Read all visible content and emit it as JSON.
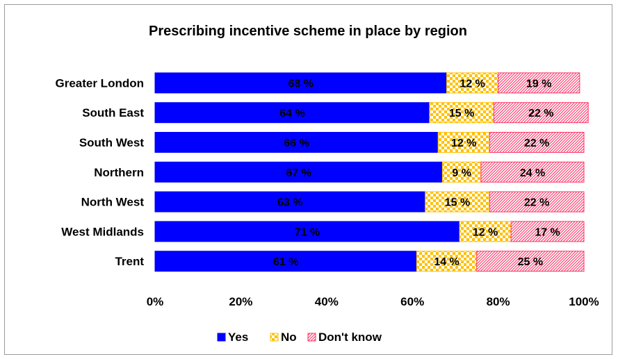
{
  "chart_data": {
    "type": "bar",
    "orientation": "horizontal",
    "stacked": true,
    "percent_stacked": true,
    "title": "Prescribing incentive scheme in place by region",
    "xlabel": "",
    "ylabel": "",
    "xlim": [
      0,
      100
    ],
    "x_ticks": [
      "0%",
      "20%",
      "40%",
      "60%",
      "80%",
      "100%"
    ],
    "grid": false,
    "legend_position": "bottom",
    "categories": [
      "Greater London",
      "South East",
      "South West",
      "Northern",
      "North West",
      "West Midlands",
      "Trent"
    ],
    "series": [
      {
        "name": "Yes",
        "color": "#0000ff",
        "pattern": "solid",
        "values": [
          68,
          64,
          66,
          67,
          63,
          71,
          61
        ],
        "labels": [
          "68 %",
          "64 %",
          "66 %",
          "67 %",
          "63 %",
          "71 %",
          "61 %"
        ]
      },
      {
        "name": "No",
        "color": "#ffc000",
        "pattern": "checker",
        "values": [
          12,
          15,
          12,
          9,
          15,
          12,
          14
        ],
        "labels": [
          "12 %",
          "15 %",
          "12 %",
          "9 %",
          "15 %",
          "12 %",
          "14 %"
        ]
      },
      {
        "name": "Don't know",
        "color": "#ff3366",
        "pattern": "diagonal-hatch",
        "values": [
          19,
          22,
          22,
          24,
          22,
          17,
          25
        ],
        "labels": [
          "19 %",
          "22 %",
          "22 %",
          "24 %",
          "22 %",
          "17 %",
          "25 %"
        ]
      }
    ]
  }
}
